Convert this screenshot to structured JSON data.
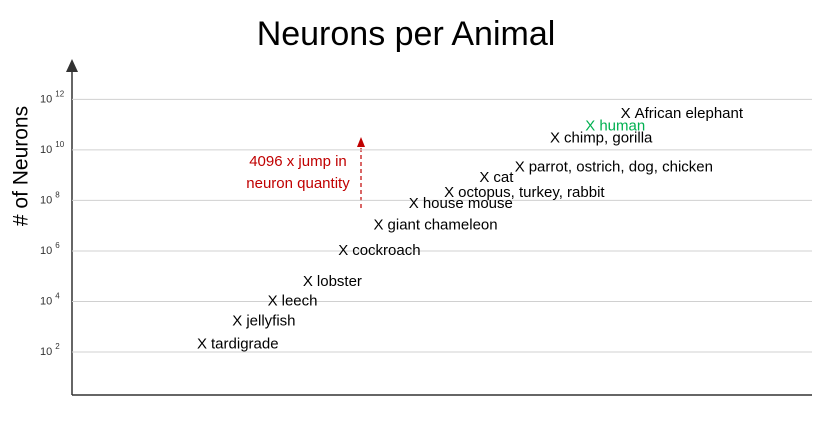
{
  "chart_data": {
    "type": "scatter",
    "title": "Neurons per Animal",
    "y_label": "# of Neurons",
    "log_scale_y": true,
    "grid": true,
    "categories": [
      "tardigrade",
      "jellyfish",
      "leech",
      "lobster",
      "cockroach",
      "giant chameleon",
      "house mouse",
      "octopus, turkey, rabbit",
      "cat",
      "parrot, ostrich, dog, chicken",
      "chimp, gorilla",
      "human",
      "African elephant"
    ],
    "values": [
      200,
      1600,
      10000,
      60000,
      1000000,
      10000000,
      71000000,
      200000000,
      760000000,
      2000000000,
      28000000000,
      86000000000,
      257000000000
    ],
    "color": "#000000",
    "highlight": {
      "category": "human",
      "color": "#00b050"
    },
    "ylim": [
      2,
      30000000000000
    ],
    "yticks": [
      {
        "value": 100,
        "label": {
          "base": "10",
          "exponent": "2"
        }
      },
      {
        "value": 10000,
        "label": {
          "base": "10",
          "exponent": "4"
        }
      },
      {
        "value": 1000000,
        "label": {
          "base": "10",
          "exponent": "6"
        }
      },
      {
        "value": 100000000,
        "label": {
          "base": "10",
          "exponent": "8"
        }
      },
      {
        "value": 10000000000,
        "label": {
          "base": "10",
          "exponent": "10"
        }
      },
      {
        "value": 1000000000000,
        "label": {
          "base": "10",
          "exponent": "12"
        }
      }
    ],
    "marker": "X",
    "annotation": {
      "lines": [
        "4096 x jump in",
        "neuron quantity"
      ],
      "color": "#c00000"
    }
  }
}
